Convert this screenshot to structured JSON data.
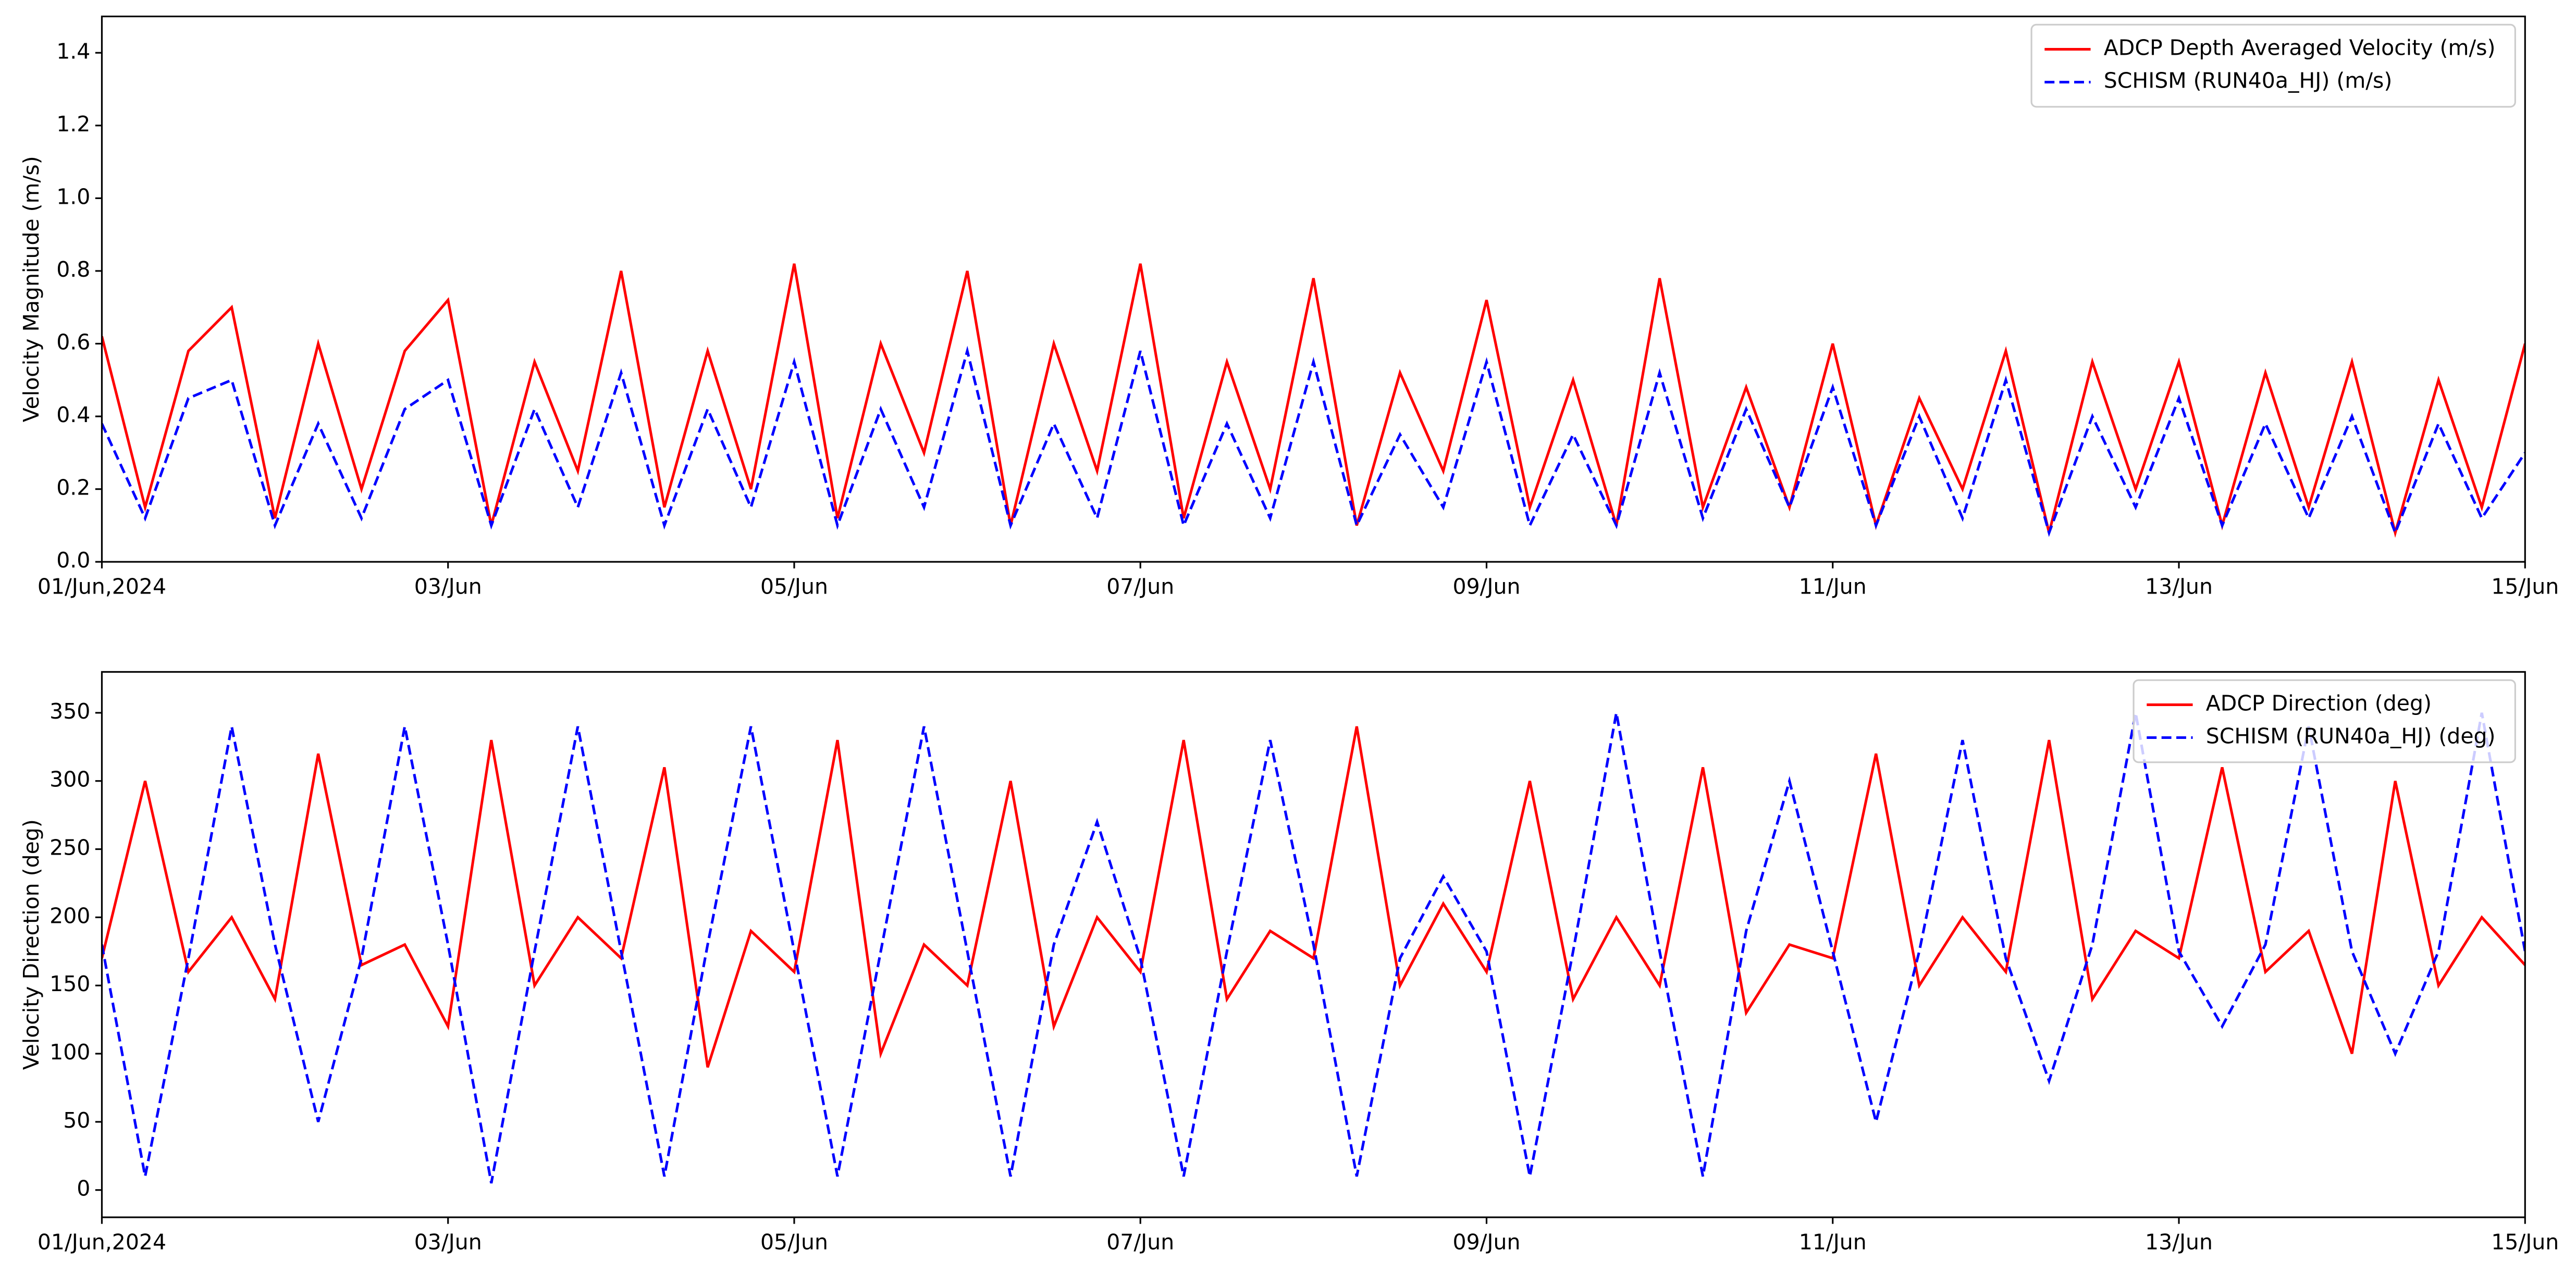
{
  "chart_data": [
    {
      "type": "line",
      "y_label": "Velocity Magnitude (m/s)",
      "x": [
        0,
        0.25,
        0.5,
        0.75,
        1,
        1.25,
        1.5,
        1.75,
        2,
        2.25,
        2.5,
        2.75,
        3,
        3.25,
        3.5,
        3.75,
        4,
        4.25,
        4.5,
        4.75,
        5,
        5.25,
        5.5,
        5.75,
        6,
        6.25,
        6.5,
        6.75,
        7,
        7.25,
        7.5,
        7.75,
        8,
        8.25,
        8.5,
        8.75,
        9,
        9.25,
        9.5,
        9.75,
        10,
        10.25,
        10.5,
        10.75,
        11,
        11.25,
        11.5,
        11.75,
        12,
        12.25,
        12.5,
        12.75,
        13,
        13.25,
        13.5,
        13.75,
        14
      ],
      "xlim": [
        0,
        14
      ],
      "xticks": [
        {
          "value": 0,
          "label": "01/Jun,2024"
        },
        {
          "value": 2,
          "label": "03/Jun"
        },
        {
          "value": 4,
          "label": "05/Jun"
        },
        {
          "value": 6,
          "label": "07/Jun"
        },
        {
          "value": 8,
          "label": "09/Jun"
        },
        {
          "value": 10,
          "label": "11/Jun"
        },
        {
          "value": 12,
          "label": "13/Jun"
        },
        {
          "value": 14,
          "label": "15/Jun"
        }
      ],
      "ylim": [
        0,
        1.5
      ],
      "yticks": [
        {
          "value": 0,
          "label": "0.0"
        },
        0.2,
        0.4,
        0.6,
        0.8,
        {
          "value": 1,
          "label": "1.0"
        },
        1.2,
        1.4
      ],
      "legend": "upper right",
      "series": [
        {
          "name": "ADCP Depth Averaged Velocity (m/s)",
          "color": "#ff0000",
          "style": "solid",
          "values": [
            0.62,
            0.15,
            0.58,
            0.7,
            0.12,
            0.6,
            0.2,
            0.58,
            0.72,
            0.1,
            0.55,
            0.25,
            0.8,
            0.15,
            0.58,
            0.2,
            0.82,
            0.12,
            0.6,
            0.3,
            0.8,
            0.1,
            0.6,
            0.25,
            0.82,
            0.12,
            0.55,
            0.2,
            0.78,
            0.1,
            0.52,
            0.25,
            0.72,
            0.15,
            0.5,
            0.1,
            0.78,
            0.15,
            0.48,
            0.15,
            0.6,
            0.1,
            0.45,
            0.2,
            0.58,
            0.08,
            0.55,
            0.2,
            0.55,
            0.1,
            0.52,
            0.15,
            0.55,
            0.08,
            0.5,
            0.15,
            0.6
          ]
        },
        {
          "name": "SCHISM (RUN40a_HJ) (m/s)",
          "color": "#0000ff",
          "style": "dashed",
          "values": [
            0.38,
            0.12,
            0.45,
            0.5,
            0.1,
            0.38,
            0.12,
            0.42,
            0.5,
            0.1,
            0.42,
            0.15,
            0.52,
            0.1,
            0.42,
            0.15,
            0.55,
            0.1,
            0.42,
            0.15,
            0.58,
            0.1,
            0.38,
            0.12,
            0.58,
            0.1,
            0.38,
            0.12,
            0.55,
            0.1,
            0.35,
            0.15,
            0.55,
            0.1,
            0.35,
            0.1,
            0.52,
            0.12,
            0.42,
            0.15,
            0.48,
            0.1,
            0.4,
            0.12,
            0.5,
            0.08,
            0.4,
            0.15,
            0.45,
            0.1,
            0.38,
            0.12,
            0.4,
            0.08,
            0.38,
            0.12,
            0.3
          ]
        }
      ]
    },
    {
      "type": "line",
      "y_label": "Velocity Direction (deg)",
      "x": [
        0,
        0.25,
        0.5,
        0.75,
        1,
        1.25,
        1.5,
        1.75,
        2,
        2.25,
        2.5,
        2.75,
        3,
        3.25,
        3.5,
        3.75,
        4,
        4.25,
        4.5,
        4.75,
        5,
        5.25,
        5.5,
        5.75,
        6,
        6.25,
        6.5,
        6.75,
        7,
        7.25,
        7.5,
        7.75,
        8,
        8.25,
        8.5,
        8.75,
        9,
        9.25,
        9.5,
        9.75,
        10,
        10.25,
        10.5,
        10.75,
        11,
        11.25,
        11.5,
        11.75,
        12,
        12.25,
        12.5,
        12.75,
        13,
        13.25,
        13.5,
        13.75,
        14
      ],
      "xlim": [
        0,
        14
      ],
      "xticks": [
        {
          "value": 0,
          "label": "01/Jun,2024"
        },
        {
          "value": 2,
          "label": "03/Jun"
        },
        {
          "value": 4,
          "label": "05/Jun"
        },
        {
          "value": 6,
          "label": "07/Jun"
        },
        {
          "value": 8,
          "label": "09/Jun"
        },
        {
          "value": 10,
          "label": "11/Jun"
        },
        {
          "value": 12,
          "label": "13/Jun"
        },
        {
          "value": 14,
          "label": "15/Jun"
        }
      ],
      "ylim": [
        -20,
        380
      ],
      "yticks": [
        0,
        50,
        100,
        150,
        200,
        250,
        300,
        350
      ],
      "legend": "upper right",
      "series": [
        {
          "name": "ADCP Direction (deg)",
          "color": "#ff0000",
          "style": "solid",
          "values": [
            170,
            300,
            160,
            200,
            140,
            320,
            165,
            180,
            120,
            330,
            150,
            200,
            170,
            310,
            90,
            190,
            160,
            330,
            100,
            180,
            150,
            300,
            120,
            200,
            160,
            330,
            140,
            190,
            170,
            340,
            150,
            210,
            160,
            300,
            140,
            200,
            150,
            310,
            130,
            180,
            170,
            320,
            150,
            200,
            160,
            330,
            140,
            190,
            170,
            310,
            160,
            190,
            100,
            300,
            150,
            200,
            165
          ]
        },
        {
          "name": "SCHISM (RUN40a_HJ) (deg)",
          "color": "#0000ff",
          "style": "dashed",
          "values": [
            180,
            10,
            170,
            340,
            180,
            50,
            170,
            340,
            180,
            5,
            175,
            340,
            175,
            10,
            180,
            340,
            175,
            10,
            175,
            340,
            175,
            10,
            180,
            270,
            170,
            10,
            175,
            330,
            180,
            10,
            170,
            230,
            175,
            10,
            175,
            350,
            175,
            10,
            190,
            300,
            175,
            50,
            175,
            330,
            170,
            80,
            180,
            350,
            175,
            120,
            180,
            340,
            175,
            100,
            175,
            350,
            175
          ]
        }
      ]
    }
  ]
}
